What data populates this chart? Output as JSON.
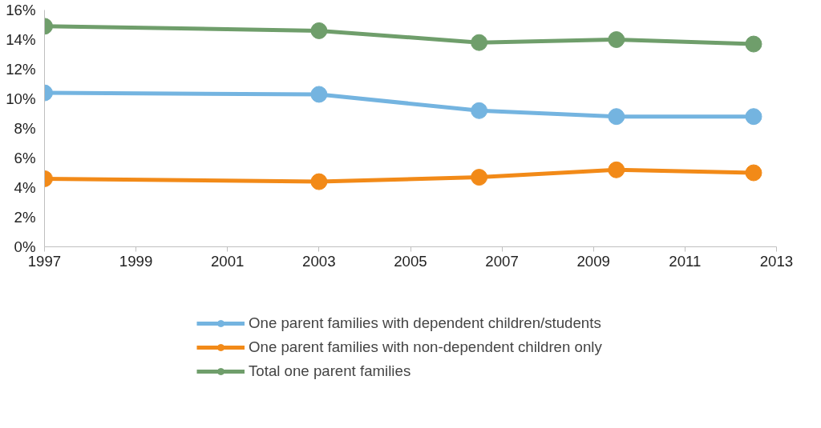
{
  "chart_data": {
    "type": "line",
    "x": [
      1997,
      2003,
      2006.5,
      2009.5,
      2012.5
    ],
    "series": [
      {
        "name": "One parent families with dependent children/students",
        "color": "#74b4e0",
        "values": [
          10.4,
          10.3,
          9.2,
          8.8,
          8.8
        ]
      },
      {
        "name": "One parent families with non-dependent children only",
        "color": "#f28a18",
        "values": [
          4.6,
          4.4,
          4.7,
          5.2,
          5.0
        ]
      },
      {
        "name": "Total one parent families",
        "color": "#6f9e6b",
        "values": [
          14.9,
          14.6,
          13.8,
          14.0,
          13.7
        ]
      }
    ],
    "xlim": [
      1997,
      2013
    ],
    "xticks": [
      1997,
      1999,
      2001,
      2003,
      2005,
      2007,
      2009,
      2011,
      2013
    ],
    "ylim": [
      0,
      16
    ],
    "yticks": [
      {
        "value": 0,
        "label": "0%"
      },
      {
        "value": 2,
        "label": "2%"
      },
      {
        "value": 4,
        "label": "4%"
      },
      {
        "value": 6,
        "label": "6%"
      },
      {
        "value": 8,
        "label": "8%"
      },
      {
        "value": 10,
        "label": "10%"
      },
      {
        "value": 12,
        "label": "12%"
      },
      {
        "value": 14,
        "label": "14%"
      },
      {
        "value": 16,
        "label": "16%"
      }
    ],
    "grid": false,
    "legend": "bottom",
    "marker": "circle",
    "line_style": "solid"
  }
}
